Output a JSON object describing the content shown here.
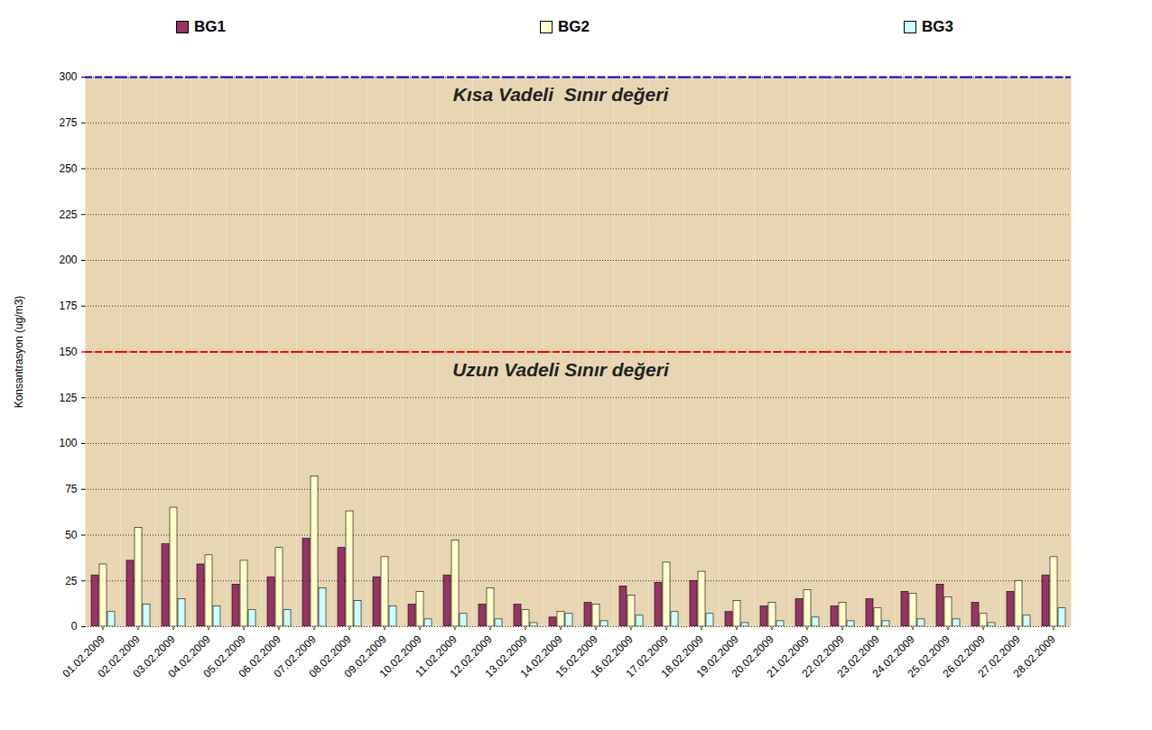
{
  "chart_data": {
    "type": "bar",
    "categories": [
      "01.02.2009",
      "02.02.2009",
      "03.02.2009",
      "04.02.2009",
      "05.02.2009",
      "06.02.2009",
      "07.02.2009",
      "08.02.2009",
      "09.02.2009",
      "10.02.2009",
      "11.02.2009",
      "12.02.2009",
      "13.02.2009",
      "14.02.2009",
      "15.02.2009",
      "16.02.2009",
      "17.02.2009",
      "18.02.2009",
      "19.02.2009",
      "20.02.2009",
      "21.02.2009",
      "22.02.2009",
      "23.02.2009",
      "24.02.2009",
      "25.02.2009",
      "26.02.2009",
      "27.02.2009",
      "28.02.2009"
    ],
    "series": [
      {
        "name": "BG1",
        "color": "#993366",
        "values": [
          28,
          36,
          45,
          34,
          23,
          27,
          48,
          43,
          27,
          12,
          28,
          12,
          12,
          5,
          13,
          22,
          24,
          25,
          8,
          11,
          15,
          11,
          15,
          19,
          23,
          13,
          19,
          28
        ]
      },
      {
        "name": "BG2",
        "color": "#ffffcc",
        "values": [
          34,
          54,
          65,
          39,
          36,
          43,
          82,
          63,
          38,
          19,
          47,
          21,
          9,
          8,
          12,
          17,
          35,
          30,
          14,
          13,
          20,
          13,
          10,
          18,
          16,
          7,
          25,
          38
        ]
      },
      {
        "name": "BG3",
        "color": "#ccffff",
        "values": [
          8,
          12,
          15,
          11,
          9,
          9,
          21,
          14,
          11,
          4,
          7,
          4,
          2,
          7,
          3,
          6,
          8,
          7,
          2,
          3,
          5,
          3,
          3,
          4,
          4,
          2,
          6,
          10
        ]
      }
    ],
    "ylabel": "Konsantrasyon (ug/m3)",
    "ylim": [
      0,
      300
    ],
    "yticks": [
      0,
      25,
      50,
      75,
      100,
      125,
      150,
      175,
      200,
      225,
      250,
      275,
      300
    ],
    "grid": true,
    "legend": "top",
    "annotations": [
      {
        "text": "Kısa Vadeli  Sınır değeri",
        "y": 300,
        "color": "#0000cc",
        "line_style": "dashed"
      },
      {
        "text": "Uzun Vadeli Sınır değeri",
        "y": 150,
        "color": "#ff0000",
        "line_style": "dashed"
      }
    ]
  }
}
